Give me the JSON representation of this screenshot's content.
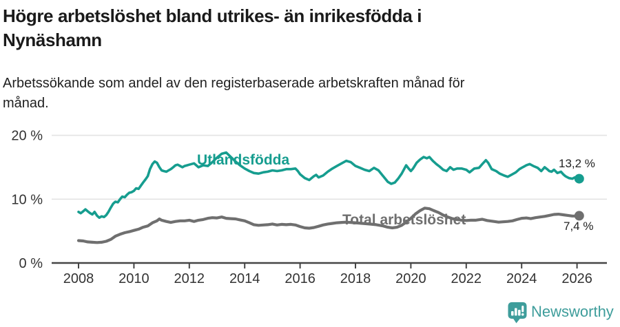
{
  "header": {
    "title_lines": [
      "Högre arbetslöshet bland utrikes- än inrikesfödda i",
      "Nynäshamn"
    ],
    "subtitle_lines": [
      "Arbetssökande som andel av den registerbaserade arbetskraften månad för",
      "månad."
    ]
  },
  "footer": {
    "brand": "Newsworthy",
    "brand_color": "#3e9d9b"
  },
  "chart_data": {
    "type": "line",
    "title": "Högre arbetslöshet bland utrikes- än inrikesfödda i Nynäshamn",
    "subtitle": "Arbetssökande som andel av den registerbaserade arbetskraften månad för månad.",
    "grid": "horizontal-only",
    "legend_position": "inline-labels",
    "x_axis": {
      "unit": "year",
      "range": [
        2007.0,
        2027.1
      ],
      "ticks": [
        {
          "v": 2008,
          "label": "2008"
        },
        {
          "v": 2010,
          "label": "2010"
        },
        {
          "v": 2012,
          "label": "2012"
        },
        {
          "v": 2014,
          "label": "2014"
        },
        {
          "v": 2016,
          "label": "2016"
        },
        {
          "v": 2018,
          "label": "2018"
        },
        {
          "v": 2020,
          "label": "2020"
        },
        {
          "v": 2022,
          "label": "2022"
        },
        {
          "v": 2024,
          "label": "2024"
        },
        {
          "v": 2026,
          "label": "2026"
        }
      ]
    },
    "y_axis": {
      "unit": "percent",
      "range": [
        0,
        21.5
      ],
      "ticks": [
        {
          "v": 0,
          "label": "0 %"
        },
        {
          "v": 10,
          "label": "10 %"
        },
        {
          "v": 20,
          "label": "20 %"
        }
      ]
    },
    "series": [
      {
        "name": "Utlandsfödda",
        "label": "Utlandsfödda",
        "end_label": "13,2 %",
        "end_value": 13.2,
        "color": "#169d8f",
        "line_width": 3.6,
        "points": [
          [
            2008.0,
            8.0
          ],
          [
            2008.08,
            7.8
          ],
          [
            2008.17,
            8.1
          ],
          [
            2008.25,
            8.4
          ],
          [
            2008.33,
            8.1
          ],
          [
            2008.42,
            7.8
          ],
          [
            2008.5,
            7.6
          ],
          [
            2008.58,
            8.0
          ],
          [
            2008.67,
            7.4
          ],
          [
            2008.75,
            7.1
          ],
          [
            2008.83,
            7.3
          ],
          [
            2008.92,
            7.2
          ],
          [
            2009.0,
            7.5
          ],
          [
            2009.08,
            8.0
          ],
          [
            2009.17,
            8.7
          ],
          [
            2009.25,
            9.3
          ],
          [
            2009.33,
            9.6
          ],
          [
            2009.42,
            9.5
          ],
          [
            2009.5,
            10.0
          ],
          [
            2009.58,
            10.4
          ],
          [
            2009.67,
            10.3
          ],
          [
            2009.75,
            10.7
          ],
          [
            2009.83,
            11.0
          ],
          [
            2009.92,
            11.1
          ],
          [
            2010.0,
            11.3
          ],
          [
            2010.08,
            11.7
          ],
          [
            2010.17,
            11.6
          ],
          [
            2010.25,
            12.1
          ],
          [
            2010.33,
            12.6
          ],
          [
            2010.42,
            13.1
          ],
          [
            2010.5,
            13.6
          ],
          [
            2010.58,
            14.7
          ],
          [
            2010.67,
            15.5
          ],
          [
            2010.75,
            15.9
          ],
          [
            2010.83,
            15.7
          ],
          [
            2010.92,
            15.0
          ],
          [
            2011.0,
            14.5
          ],
          [
            2011.08,
            14.4
          ],
          [
            2011.17,
            14.3
          ],
          [
            2011.25,
            14.5
          ],
          [
            2011.33,
            14.7
          ],
          [
            2011.42,
            15.0
          ],
          [
            2011.5,
            15.3
          ],
          [
            2011.58,
            15.4
          ],
          [
            2011.67,
            15.2
          ],
          [
            2011.75,
            15.0
          ],
          [
            2011.83,
            15.2
          ],
          [
            2011.92,
            15.3
          ],
          [
            2012.0,
            15.4
          ],
          [
            2012.17,
            15.6
          ],
          [
            2012.33,
            15.0
          ],
          [
            2012.5,
            15.3
          ],
          [
            2012.67,
            15.2
          ],
          [
            2012.83,
            15.8
          ],
          [
            2013.0,
            16.5
          ],
          [
            2013.17,
            17.1
          ],
          [
            2013.33,
            17.3
          ],
          [
            2013.5,
            16.6
          ],
          [
            2013.67,
            15.9
          ],
          [
            2013.83,
            15.3
          ],
          [
            2014.0,
            14.8
          ],
          [
            2014.17,
            14.4
          ],
          [
            2014.33,
            14.1
          ],
          [
            2014.5,
            14.0
          ],
          [
            2014.67,
            14.2
          ],
          [
            2014.83,
            14.3
          ],
          [
            2015.0,
            14.5
          ],
          [
            2015.17,
            14.4
          ],
          [
            2015.33,
            14.5
          ],
          [
            2015.5,
            14.7
          ],
          [
            2015.67,
            14.7
          ],
          [
            2015.83,
            14.8
          ],
          [
            2015.92,
            14.4
          ],
          [
            2016.0,
            13.9
          ],
          [
            2016.17,
            13.3
          ],
          [
            2016.33,
            13.0
          ],
          [
            2016.5,
            13.6
          ],
          [
            2016.58,
            13.8
          ],
          [
            2016.67,
            13.4
          ],
          [
            2016.83,
            13.7
          ],
          [
            2017.0,
            14.3
          ],
          [
            2017.17,
            14.8
          ],
          [
            2017.33,
            15.2
          ],
          [
            2017.5,
            15.6
          ],
          [
            2017.67,
            16.0
          ],
          [
            2017.83,
            15.8
          ],
          [
            2018.0,
            15.2
          ],
          [
            2018.17,
            14.9
          ],
          [
            2018.33,
            14.6
          ],
          [
            2018.5,
            14.4
          ],
          [
            2018.67,
            14.9
          ],
          [
            2018.83,
            14.5
          ],
          [
            2019.0,
            13.6
          ],
          [
            2019.17,
            12.7
          ],
          [
            2019.29,
            12.4
          ],
          [
            2019.42,
            12.6
          ],
          [
            2019.54,
            13.2
          ],
          [
            2019.67,
            14.0
          ],
          [
            2019.83,
            15.3
          ],
          [
            2019.92,
            14.8
          ],
          [
            2020.0,
            14.4
          ],
          [
            2020.08,
            14.8
          ],
          [
            2020.21,
            15.7
          ],
          [
            2020.33,
            16.2
          ],
          [
            2020.46,
            16.6
          ],
          [
            2020.58,
            16.4
          ],
          [
            2020.67,
            16.6
          ],
          [
            2020.79,
            16.0
          ],
          [
            2020.92,
            15.5
          ],
          [
            2021.04,
            15.1
          ],
          [
            2021.17,
            14.6
          ],
          [
            2021.29,
            14.4
          ],
          [
            2021.42,
            15.0
          ],
          [
            2021.54,
            14.6
          ],
          [
            2021.67,
            14.8
          ],
          [
            2021.83,
            14.8
          ],
          [
            2022.0,
            14.6
          ],
          [
            2022.12,
            14.2
          ],
          [
            2022.29,
            14.8
          ],
          [
            2022.46,
            14.9
          ],
          [
            2022.58,
            15.5
          ],
          [
            2022.71,
            16.1
          ],
          [
            2022.79,
            15.7
          ],
          [
            2022.92,
            14.7
          ],
          [
            2023.08,
            14.4
          ],
          [
            2023.21,
            14.0
          ],
          [
            2023.37,
            13.7
          ],
          [
            2023.5,
            13.5
          ],
          [
            2023.67,
            13.9
          ],
          [
            2023.79,
            14.2
          ],
          [
            2023.92,
            14.7
          ],
          [
            2024.0,
            14.9
          ],
          [
            2024.17,
            15.3
          ],
          [
            2024.29,
            15.5
          ],
          [
            2024.42,
            15.2
          ],
          [
            2024.58,
            14.9
          ],
          [
            2024.71,
            14.4
          ],
          [
            2024.83,
            15.0
          ],
          [
            2024.92,
            14.7
          ],
          [
            2025.0,
            14.4
          ],
          [
            2025.08,
            14.3
          ],
          [
            2025.17,
            14.6
          ],
          [
            2025.29,
            14.1
          ],
          [
            2025.42,
            14.3
          ],
          [
            2025.5,
            13.9
          ],
          [
            2025.58,
            13.6
          ],
          [
            2025.71,
            13.3
          ],
          [
            2025.83,
            13.2
          ],
          [
            2025.92,
            13.4
          ],
          [
            2026.0,
            13.1
          ],
          [
            2026.08,
            13.2
          ]
        ]
      },
      {
        "name": "Total arbetslöshet",
        "label": "Total arbetslöshet",
        "end_label": "7,4 %",
        "end_value": 7.4,
        "color": "#6f6f6f",
        "line_width": 4.2,
        "points": [
          [
            2008.0,
            3.5
          ],
          [
            2008.17,
            3.45
          ],
          [
            2008.33,
            3.3
          ],
          [
            2008.5,
            3.25
          ],
          [
            2008.67,
            3.2
          ],
          [
            2008.83,
            3.25
          ],
          [
            2009.0,
            3.4
          ],
          [
            2009.17,
            3.7
          ],
          [
            2009.33,
            4.2
          ],
          [
            2009.5,
            4.5
          ],
          [
            2009.67,
            4.75
          ],
          [
            2009.83,
            4.9
          ],
          [
            2010.0,
            5.1
          ],
          [
            2010.17,
            5.3
          ],
          [
            2010.33,
            5.6
          ],
          [
            2010.5,
            5.8
          ],
          [
            2010.67,
            6.3
          ],
          [
            2010.83,
            6.6
          ],
          [
            2010.92,
            6.9
          ],
          [
            2011.0,
            6.7
          ],
          [
            2011.17,
            6.5
          ],
          [
            2011.33,
            6.35
          ],
          [
            2011.5,
            6.5
          ],
          [
            2011.67,
            6.6
          ],
          [
            2011.83,
            6.6
          ],
          [
            2012.0,
            6.7
          ],
          [
            2012.17,
            6.5
          ],
          [
            2012.33,
            6.7
          ],
          [
            2012.5,
            6.8
          ],
          [
            2012.67,
            7.0
          ],
          [
            2012.83,
            7.1
          ],
          [
            2013.0,
            7.05
          ],
          [
            2013.17,
            7.2
          ],
          [
            2013.33,
            7.0
          ],
          [
            2013.5,
            6.95
          ],
          [
            2013.67,
            6.9
          ],
          [
            2013.83,
            6.75
          ],
          [
            2014.0,
            6.6
          ],
          [
            2014.17,
            6.3
          ],
          [
            2014.33,
            6.0
          ],
          [
            2014.5,
            5.9
          ],
          [
            2014.67,
            5.95
          ],
          [
            2014.83,
            6.0
          ],
          [
            2015.0,
            6.1
          ],
          [
            2015.17,
            5.95
          ],
          [
            2015.33,
            6.05
          ],
          [
            2015.5,
            6.0
          ],
          [
            2015.67,
            6.05
          ],
          [
            2015.83,
            5.95
          ],
          [
            2016.0,
            5.7
          ],
          [
            2016.17,
            5.5
          ],
          [
            2016.33,
            5.45
          ],
          [
            2016.5,
            5.55
          ],
          [
            2016.67,
            5.75
          ],
          [
            2016.83,
            5.95
          ],
          [
            2017.0,
            6.1
          ],
          [
            2017.17,
            6.2
          ],
          [
            2017.33,
            6.3
          ],
          [
            2017.5,
            6.35
          ],
          [
            2017.67,
            6.4
          ],
          [
            2017.83,
            6.35
          ],
          [
            2018.0,
            6.3
          ],
          [
            2018.25,
            6.2
          ],
          [
            2018.5,
            6.1
          ],
          [
            2018.75,
            6.0
          ],
          [
            2019.0,
            5.8
          ],
          [
            2019.17,
            5.6
          ],
          [
            2019.33,
            5.5
          ],
          [
            2019.5,
            5.6
          ],
          [
            2019.67,
            5.9
          ],
          [
            2019.83,
            6.4
          ],
          [
            2020.0,
            7.0
          ],
          [
            2020.17,
            7.7
          ],
          [
            2020.33,
            8.2
          ],
          [
            2020.5,
            8.6
          ],
          [
            2020.67,
            8.5
          ],
          [
            2020.83,
            8.2
          ],
          [
            2021.0,
            7.9
          ],
          [
            2021.17,
            7.5
          ],
          [
            2021.33,
            7.2
          ],
          [
            2021.5,
            6.95
          ],
          [
            2021.67,
            6.8
          ],
          [
            2021.83,
            6.7
          ],
          [
            2022.0,
            6.65
          ],
          [
            2022.17,
            6.7
          ],
          [
            2022.33,
            6.7
          ],
          [
            2022.5,
            6.8
          ],
          [
            2022.58,
            6.85
          ],
          [
            2022.75,
            6.65
          ],
          [
            2023.0,
            6.5
          ],
          [
            2023.17,
            6.4
          ],
          [
            2023.33,
            6.45
          ],
          [
            2023.5,
            6.5
          ],
          [
            2023.67,
            6.6
          ],
          [
            2023.83,
            6.8
          ],
          [
            2024.0,
            7.0
          ],
          [
            2024.17,
            7.05
          ],
          [
            2024.33,
            6.95
          ],
          [
            2024.5,
            7.1
          ],
          [
            2024.67,
            7.2
          ],
          [
            2024.83,
            7.3
          ],
          [
            2025.0,
            7.45
          ],
          [
            2025.17,
            7.6
          ],
          [
            2025.33,
            7.65
          ],
          [
            2025.5,
            7.55
          ],
          [
            2025.67,
            7.45
          ],
          [
            2025.83,
            7.35
          ],
          [
            2026.0,
            7.35
          ],
          [
            2026.08,
            7.4
          ]
        ]
      }
    ]
  }
}
